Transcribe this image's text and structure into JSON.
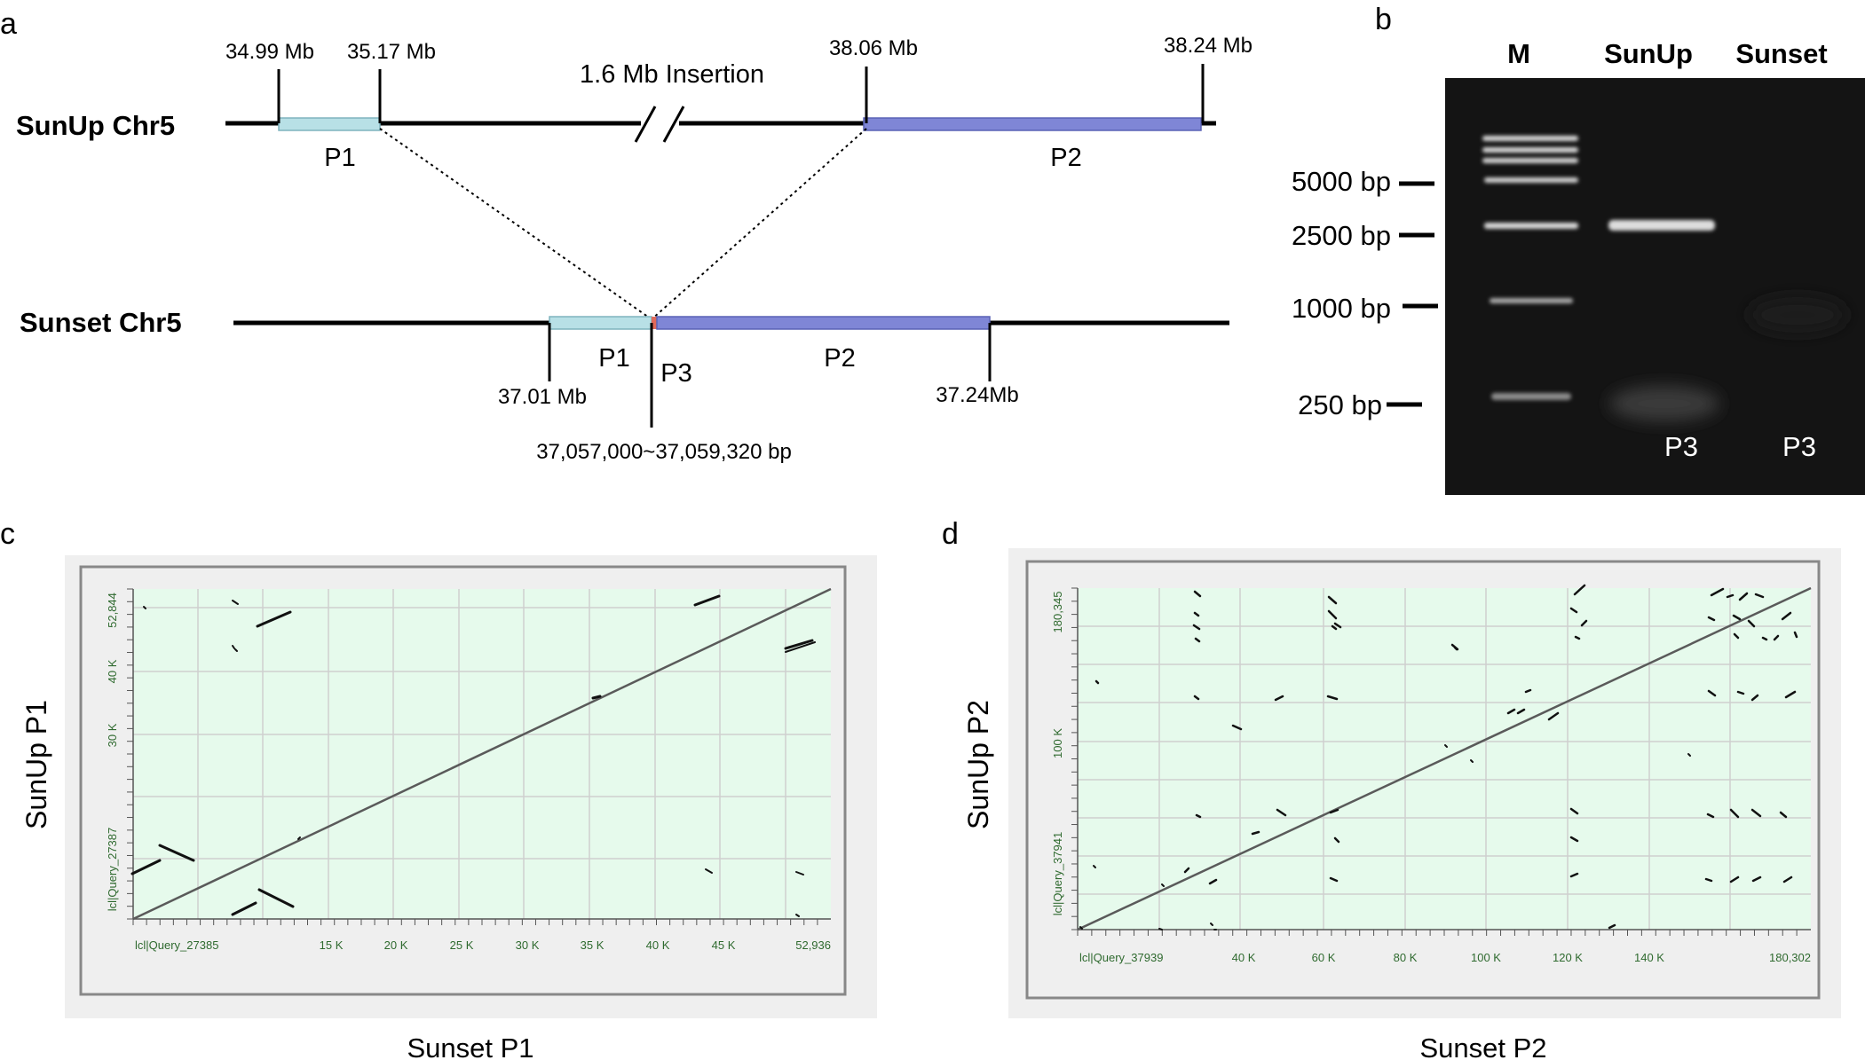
{
  "panel_a": {
    "letter": "a",
    "sunup_label": "SunUp Chr5",
    "sunset_label": "Sunset Chr5",
    "pos_3499": "34.99 Mb",
    "pos_3517": "35.17 Mb",
    "pos_3806": "38.06 Mb",
    "pos_3824": "38.24 Mb",
    "insertion": "1.6 Mb Insertion",
    "p1_top": "P1",
    "p2_top": "P2",
    "p1_bottom": "P1",
    "p2_bottom": "P2",
    "p3": "P3",
    "pos_3701": "37.01 Mb",
    "pos_3724": "37.24Mb",
    "range": "37,057,000~37,059,320 bp",
    "colors": {
      "p1": "#b8e0e6",
      "p2": "#7f86d6",
      "p3": "#e06a5a"
    }
  },
  "panel_b": {
    "letter": "b",
    "lane_m": "M",
    "lane_sunup": "SunUp",
    "lane_sunset": "Sunset",
    "ladder": [
      "5000 bp",
      "2500 bp",
      "1000 bp",
      "250 bp"
    ],
    "p3_sunup": "P3",
    "p3_sunset": "P3"
  },
  "panel_c": {
    "letter": "c",
    "ylabel": "SunUp P1",
    "xlabel": "Sunset P1",
    "x_ticks": [
      "lcl|Query_27385",
      "15 K",
      "20 K",
      "25 K",
      "30 K",
      "35 K",
      "40 K",
      "45 K",
      "52,936"
    ],
    "y_ticks": [
      "52,844",
      "40 K",
      "30 K",
      "lcl|Query_27387"
    ]
  },
  "panel_d": {
    "letter": "d",
    "ylabel": "SunUp P2",
    "xlabel": "Sunset P2",
    "x_ticks": [
      "lcl|Query_37939",
      "40 K",
      "60 K",
      "80 K",
      "100 K",
      "120 K",
      "140 K",
      "180,302"
    ],
    "y_ticks": [
      "180,345",
      "100 K",
      "lcl|Query_37941"
    ]
  },
  "colors": {
    "plot_bg": "#e6faec",
    "frame_bg": "#efefef",
    "gel_bg": "#141414"
  }
}
